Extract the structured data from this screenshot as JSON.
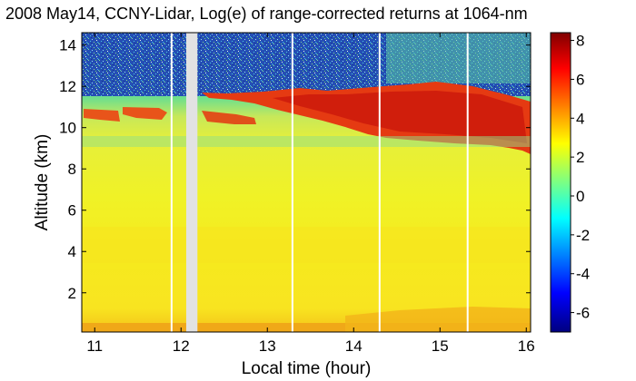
{
  "chart_data": {
    "type": "heatmap",
    "title": "2008 May14, CCNY-Lidar, Log(e) of range-corrected returns at 1064-nm",
    "xlabel": "Local time (hour)",
    "ylabel": "Altitude (km)",
    "xlim": [
      10.85,
      16.05
    ],
    "ylim": [
      0.1,
      14.6
    ],
    "x_ticks": [
      "11",
      "12",
      "13",
      "14",
      "15",
      "16"
    ],
    "x_tick_values": [
      11,
      12,
      13,
      14,
      15,
      16
    ],
    "y_ticks": [
      "2",
      "4",
      "6",
      "8",
      "10",
      "12",
      "14"
    ],
    "y_tick_values": [
      2,
      4,
      6,
      8,
      10,
      12,
      14
    ],
    "colorbar": {
      "colormap": "jet",
      "range": [
        -7,
        8.4
      ],
      "ticks": [
        "8",
        "6",
        "4",
        "2",
        "0",
        "-2",
        "-4",
        "-6"
      ],
      "tick_values": [
        8,
        6,
        4,
        2,
        0,
        -2,
        -4,
        -6
      ]
    },
    "data_gaps": [
      {
        "start": 11.88,
        "end": 11.9
      },
      {
        "start": 12.06,
        "end": 12.19
      },
      {
        "start": 13.28,
        "end": 13.3
      },
      {
        "start": 14.29,
        "end": 14.31
      },
      {
        "start": 15.31,
        "end": 15.33
      }
    ],
    "layers": [
      {
        "feature": "boundary layer / aerosol",
        "altitude_km": [
          0.2,
          9.5
        ],
        "value_approx": 3
      },
      {
        "feature": "near-surface return",
        "altitude_km": [
          0.2,
          0.5
        ],
        "value_approx": 5
      },
      {
        "feature": "cirrus cloud",
        "time_h": [
          12.2,
          16
        ],
        "altitude_km": [
          8.8,
          11.8
        ],
        "value_approx": 6.5
      },
      {
        "feature": "thin cloud",
        "time_h": [
          10.9,
          12.2
        ],
        "altitude_km": [
          10.3,
          10.9
        ],
        "value_approx": 5.5
      },
      {
        "feature": "noise above cloud",
        "altitude_km": [
          11.5,
          14.6
        ],
        "value_approx": -2
      }
    ],
    "grid": false,
    "legend": "colorbar-right"
  }
}
